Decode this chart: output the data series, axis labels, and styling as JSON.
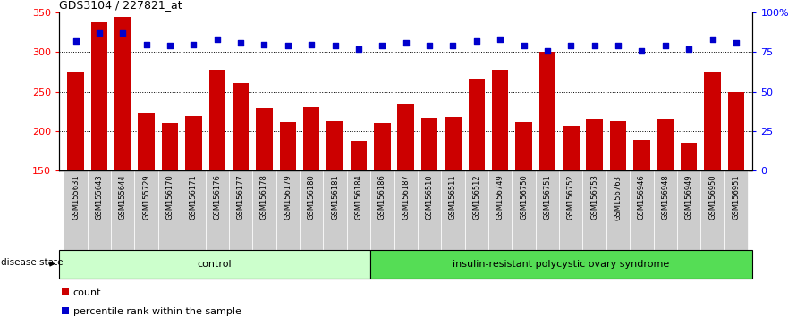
{
  "title": "GDS3104 / 227821_at",
  "samples": [
    "GSM155631",
    "GSM155643",
    "GSM155644",
    "GSM155729",
    "GSM156170",
    "GSM156171",
    "GSM156176",
    "GSM156177",
    "GSM156178",
    "GSM156179",
    "GSM156180",
    "GSM156181",
    "GSM156184",
    "GSM156186",
    "GSM156187",
    "GSM156510",
    "GSM156511",
    "GSM156512",
    "GSM156749",
    "GSM156750",
    "GSM156751",
    "GSM156752",
    "GSM156753",
    "GSM156763",
    "GSM156946",
    "GSM156948",
    "GSM156949",
    "GSM156950",
    "GSM156951"
  ],
  "counts": [
    275,
    338,
    344,
    222,
    210,
    219,
    278,
    261,
    229,
    211,
    230,
    213,
    188,
    210,
    235,
    217,
    218,
    265,
    278,
    211,
    300,
    207,
    216,
    213,
    189,
    216,
    185,
    274,
    250
  ],
  "percentile_ranks": [
    82,
    87,
    87,
    80,
    79,
    80,
    83,
    81,
    80,
    79,
    80,
    79,
    77,
    79,
    81,
    79,
    79,
    82,
    83,
    79,
    76,
    79,
    79,
    79,
    76,
    79,
    77,
    83,
    81
  ],
  "control_count": 13,
  "disease_label": "insulin-resistant polycystic ovary syndrome",
  "control_label": "control",
  "disease_state_label": "disease state",
  "bar_color": "#cc0000",
  "dot_color": "#0000cc",
  "ylim_left": [
    150,
    350
  ],
  "ylim_right": [
    0,
    100
  ],
  "yticks_left": [
    150,
    200,
    250,
    300,
    350
  ],
  "yticks_right": [
    0,
    25,
    50,
    75,
    100
  ],
  "ytick_labels_right": [
    "0",
    "25",
    "50",
    "75",
    "100%"
  ],
  "grid_values": [
    200,
    250,
    300
  ],
  "bg_color": "#ffffff",
  "tick_bg_color": "#cccccc",
  "control_bg": "#ccffcc",
  "disease_bg": "#55dd55",
  "legend_count_label": "count",
  "legend_pct_label": "percentile rank within the sample"
}
